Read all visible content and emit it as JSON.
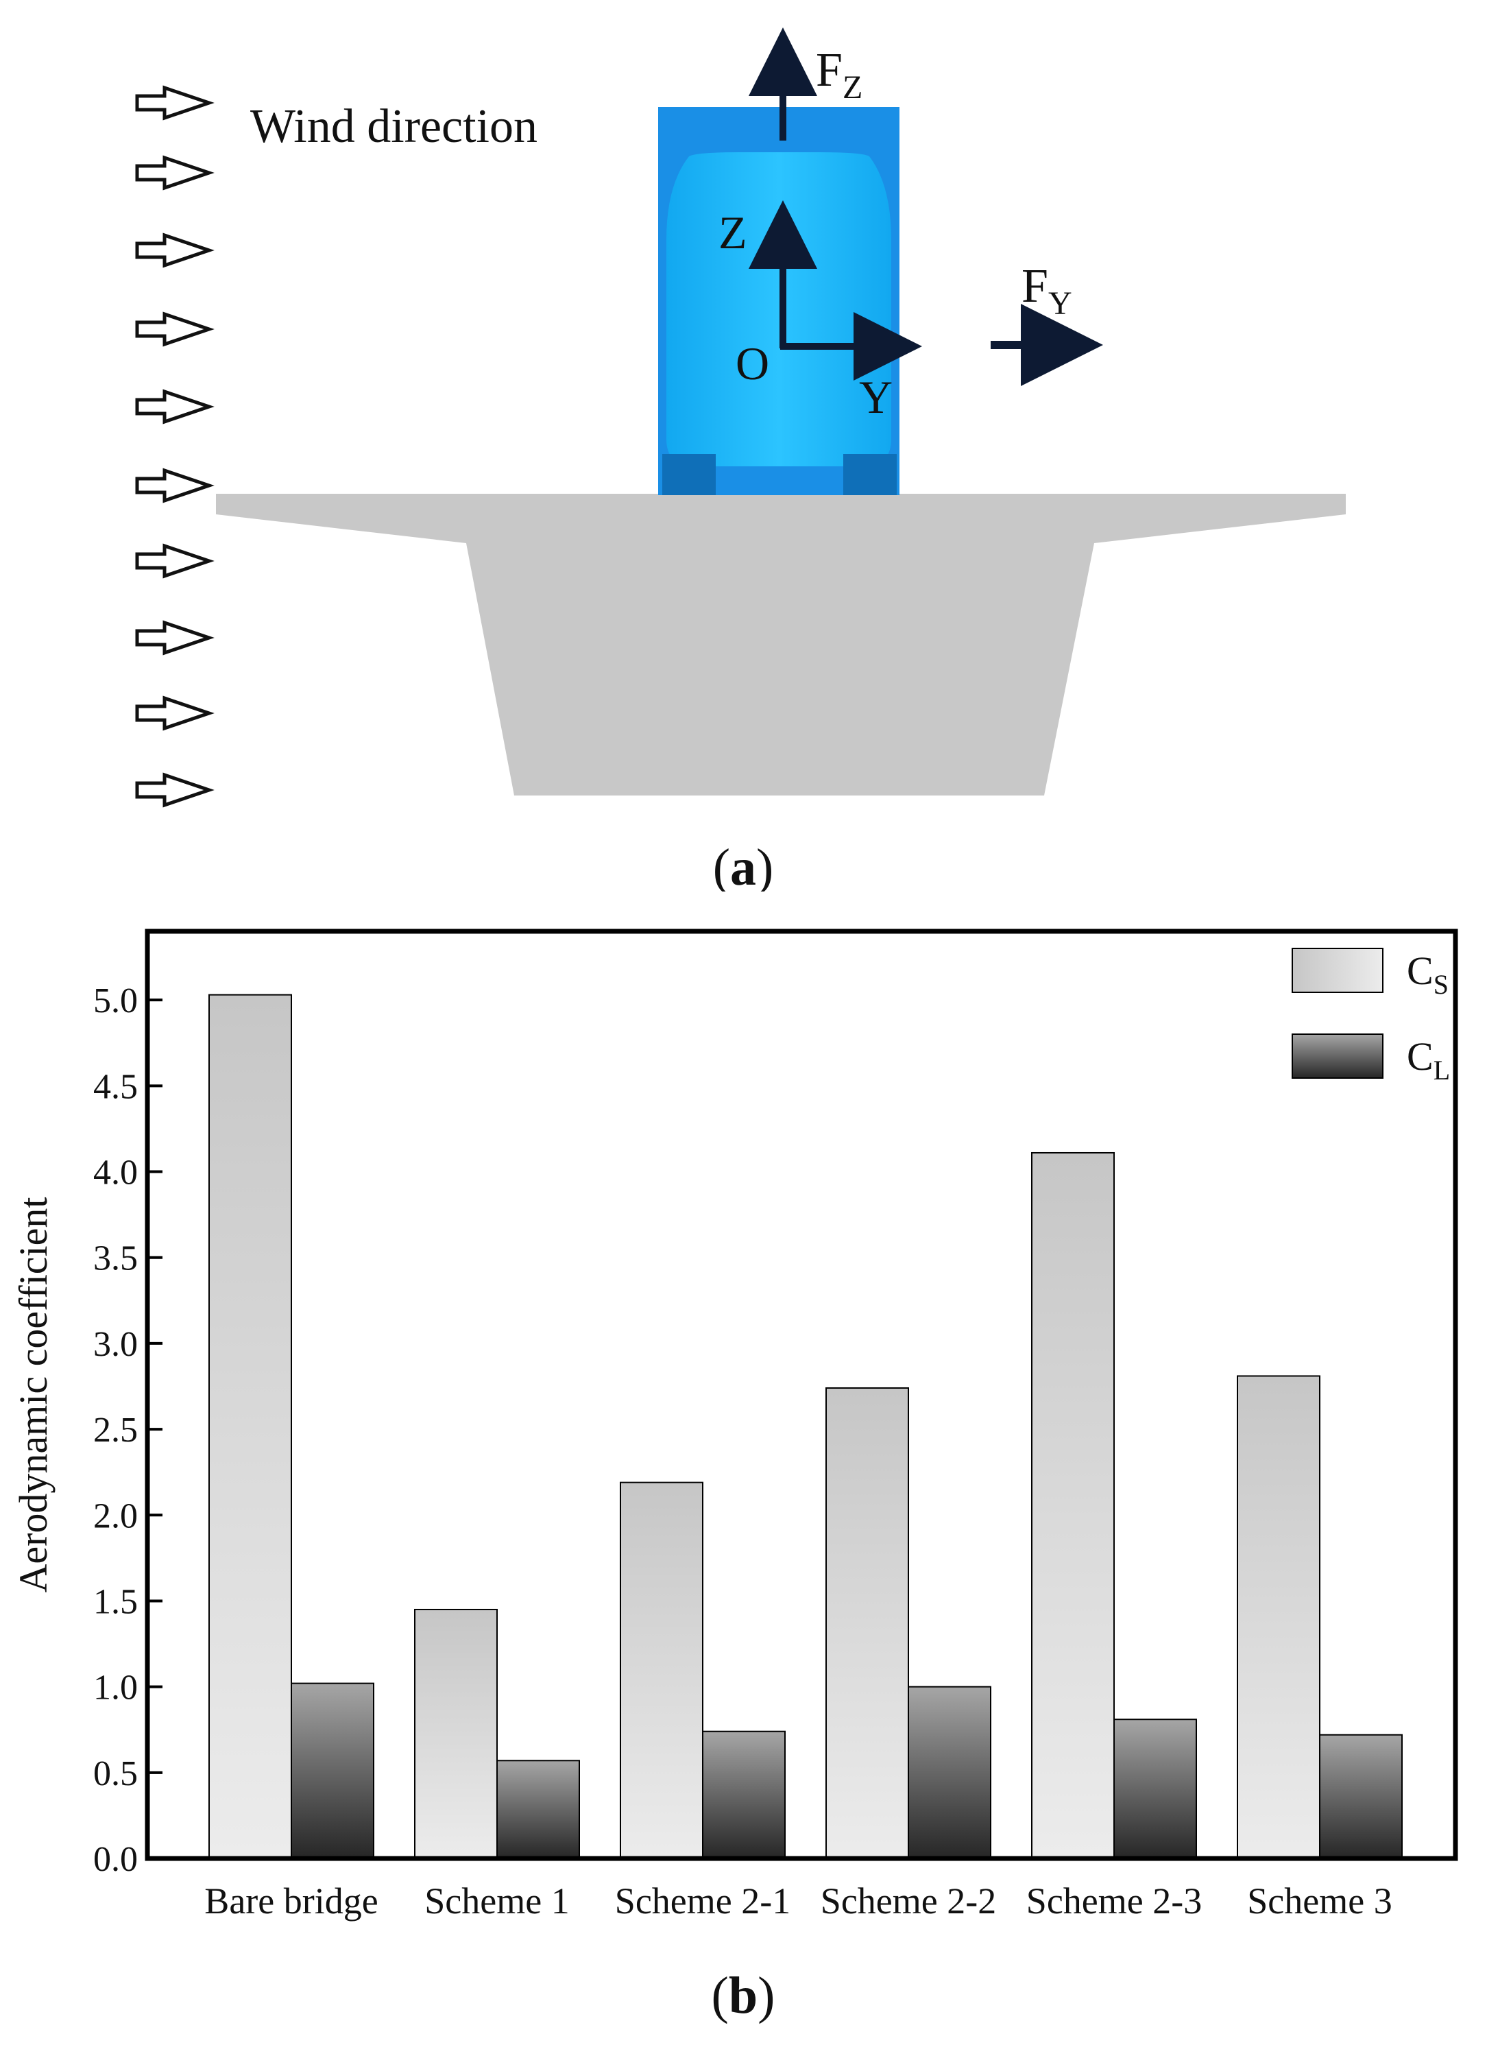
{
  "panel_a": {
    "wind_label": "Wind direction",
    "force_z": {
      "main": "F",
      "sub": "Z"
    },
    "force_y": {
      "main": "F",
      "sub": "Y"
    },
    "axis_z": "Z",
    "axis_y": "Y",
    "origin": "O",
    "caption": {
      "open": "(",
      "letter": "a",
      "close": ")"
    },
    "colors": {
      "deck": "#c8c8c8",
      "vehicle_frame": "#1a8fe6",
      "vehicle_body": "#18b4ff",
      "arrow": "#0d1a33"
    }
  },
  "panel_b": {
    "caption": {
      "open": "(",
      "letter": "b",
      "close": ")"
    }
  },
  "chart_data": {
    "type": "bar",
    "title": "",
    "xlabel": "",
    "ylabel": "Aerodynamic coefficient",
    "ylim": [
      0,
      5.4
    ],
    "yticks": [
      "0.0",
      "0.5",
      "1.0",
      "1.5",
      "2.0",
      "2.5",
      "3.0",
      "3.5",
      "4.0",
      "4.5",
      "5.0"
    ],
    "categories": [
      "Bare bridge",
      "Scheme 1",
      "Scheme 2-1",
      "Scheme 2-2",
      "Scheme 2-3",
      "Scheme 3"
    ],
    "series": [
      {
        "name": "C",
        "sub": "S",
        "values": [
          5.03,
          1.45,
          2.19,
          2.74,
          4.11,
          2.81
        ]
      },
      {
        "name": "C",
        "sub": "L",
        "values": [
          1.02,
          0.57,
          0.74,
          1.0,
          0.81,
          0.72
        ]
      }
    ],
    "legend": "top-right",
    "grid": false
  }
}
